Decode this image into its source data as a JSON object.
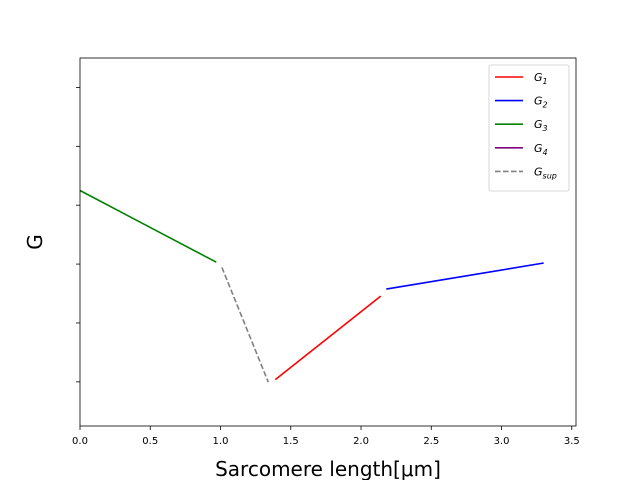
{
  "chart_data": {
    "type": "line",
    "title": "",
    "xlabel": "Sarcomere length[μm]",
    "ylabel": "G",
    "xlim": [
      0,
      3.53
    ],
    "ylim": [
      0,
      1
    ],
    "x_ticks": [
      0.0,
      0.5,
      1.0,
      1.5,
      2.0,
      2.5,
      3.0,
      3.5
    ],
    "x_tick_labels": [
      "0.0",
      "0.5",
      "1.0",
      "1.5",
      "2.0",
      "2.5",
      "3.0",
      "3.5"
    ],
    "y_ticks": [
      0.12,
      0.28,
      0.44,
      0.6,
      0.76,
      0.92
    ],
    "y_tick_labels_shown": false,
    "grid": false,
    "legend_position": "top-right",
    "series": [
      {
        "name": "G1",
        "sub": "1",
        "color": "#ff0000",
        "dash": false,
        "x": [
          1.39,
          2.14
        ],
        "y": [
          0.126,
          0.353
        ]
      },
      {
        "name": "G2",
        "sub": "2",
        "color": "#0000ff",
        "dash": false,
        "x": [
          2.18,
          3.3
        ],
        "y": [
          0.372,
          0.443
        ]
      },
      {
        "name": "G3",
        "sub": "3",
        "color": "#008000",
        "dash": false,
        "x": [
          0.0,
          0.97
        ],
        "y": [
          0.64,
          0.445
        ]
      },
      {
        "name": "G4",
        "sub": "4",
        "color": "#800080",
        "dash": false,
        "x": [],
        "y": []
      },
      {
        "name": "Gsup",
        "sub": "sup",
        "color": "#808080",
        "dash": true,
        "x": [
          1.01,
          1.34
        ],
        "y": [
          0.431,
          0.119
        ]
      }
    ]
  }
}
